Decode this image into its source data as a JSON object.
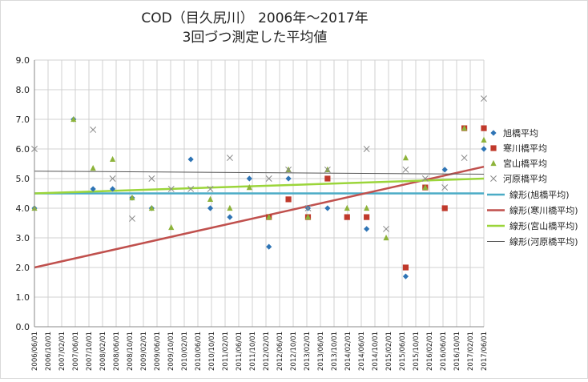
{
  "chart_data": {
    "type": "scatter",
    "title": "COD（目久尻川） 2006年～2017年",
    "subtitle": "3回づつ測定した平均値",
    "ylim": [
      0,
      9
    ],
    "yticks": [
      "0.0",
      "1.0",
      "2.0",
      "3.0",
      "4.0",
      "5.0",
      "6.0",
      "7.0",
      "8.0",
      "9.0"
    ],
    "grid": true,
    "legend_position": "right",
    "categories": [
      "2006/06/01",
      "2006/10/01",
      "2007/02/01",
      "2007/06/01",
      "2007/10/01",
      "2008/02/01",
      "2008/06/01",
      "2008/10/01",
      "2009/02/01",
      "2009/06/01",
      "2009/10/01",
      "2010/02/01",
      "2010/06/01",
      "2010/10/01",
      "2011/02/01",
      "2011/06/01",
      "2011/10/01",
      "2012/02/01",
      "2012/06/01",
      "2012/10/01",
      "2013/02/01",
      "2013/06/01",
      "2013/10/01",
      "2014/02/01",
      "2014/06/01",
      "2014/10/01",
      "2015/02/01",
      "2015/06/01",
      "2015/10/01",
      "2016/02/01",
      "2016/06/01",
      "2016/10/01",
      "2017/02/01",
      "2017/06/01"
    ],
    "series": [
      {
        "name": "旭橋平均",
        "marker": "diamond",
        "color": "#2e74b5",
        "points": [
          [
            0,
            4.0
          ],
          [
            2,
            7.0
          ],
          [
            3,
            4.65
          ],
          [
            4,
            4.65
          ],
          [
            5,
            4.35
          ],
          [
            6,
            4.0
          ],
          [
            8,
            5.65
          ],
          [
            9,
            4.0
          ],
          [
            10,
            3.7
          ],
          [
            11,
            5.0
          ],
          [
            12,
            2.7
          ],
          [
            13,
            5.0
          ],
          [
            14,
            4.0
          ],
          [
            15,
            4.0
          ],
          [
            17,
            3.3
          ],
          [
            19,
            1.7
          ],
          [
            20,
            4.7
          ],
          [
            21,
            5.3
          ],
          [
            22,
            6.7
          ],
          [
            23,
            6.0
          ]
        ]
      },
      {
        "name": "寒川橋平均",
        "marker": "square",
        "color": "#c0392b",
        "points": [
          [
            12,
            3.7
          ],
          [
            13,
            4.3
          ],
          [
            14,
            3.7
          ],
          [
            15,
            5.0
          ],
          [
            16,
            3.7
          ],
          [
            17,
            3.7
          ],
          [
            19,
            2.0
          ],
          [
            20,
            4.7
          ],
          [
            21,
            4.0
          ],
          [
            22,
            6.7
          ],
          [
            23,
            6.7
          ]
        ]
      },
      {
        "name": "宮山橋平均",
        "marker": "triangle",
        "color": "#8db33a",
        "points": [
          [
            0,
            4.0
          ],
          [
            2,
            7.0
          ],
          [
            3,
            5.35
          ],
          [
            4,
            5.65
          ],
          [
            5,
            4.35
          ],
          [
            6,
            4.0
          ],
          [
            7,
            3.35
          ],
          [
            9,
            4.3
          ],
          [
            10,
            4.0
          ],
          [
            11,
            4.7
          ],
          [
            12,
            3.7
          ],
          [
            13,
            5.3
          ],
          [
            14,
            3.7
          ],
          [
            15,
            5.3
          ],
          [
            16,
            4.0
          ],
          [
            17,
            4.0
          ],
          [
            18,
            3.0
          ],
          [
            19,
            5.7
          ],
          [
            20,
            4.7
          ],
          [
            22,
            6.7
          ],
          [
            23,
            6.3
          ]
        ]
      },
      {
        "name": "河原橋平均",
        "marker": "x",
        "color": "#8a8a8a",
        "points": [
          [
            0,
            6.0
          ],
          [
            3,
            6.65
          ],
          [
            4,
            5.0
          ],
          [
            5,
            3.65
          ],
          [
            6,
            5.0
          ],
          [
            7,
            4.65
          ],
          [
            8,
            4.65
          ],
          [
            9,
            4.65
          ],
          [
            10,
            5.7
          ],
          [
            12,
            5.0
          ],
          [
            13,
            5.3
          ],
          [
            14,
            4.0
          ],
          [
            15,
            5.3
          ],
          [
            17,
            6.0
          ],
          [
            18,
            3.3
          ],
          [
            19,
            5.3
          ],
          [
            20,
            5.0
          ],
          [
            21,
            4.7
          ],
          [
            22,
            5.7
          ],
          [
            23,
            7.7
          ]
        ]
      }
    ],
    "trendlines": [
      {
        "name": "線形(旭橋平均)",
        "color": "#4bacc6",
        "y_start": 4.5,
        "y_end": 4.5
      },
      {
        "name": "線形(寒川橋平均)",
        "color": "#c0504d",
        "y_start": 2.0,
        "y_end": 5.4
      },
      {
        "name": "線形(宮山橋平均)",
        "color": "#9bd53a",
        "y_start": 4.5,
        "y_end": 5.0
      },
      {
        "name": "線形(河原橋平均)",
        "color": "#555555",
        "y_start": 5.25,
        "y_end": 5.15
      }
    ]
  }
}
